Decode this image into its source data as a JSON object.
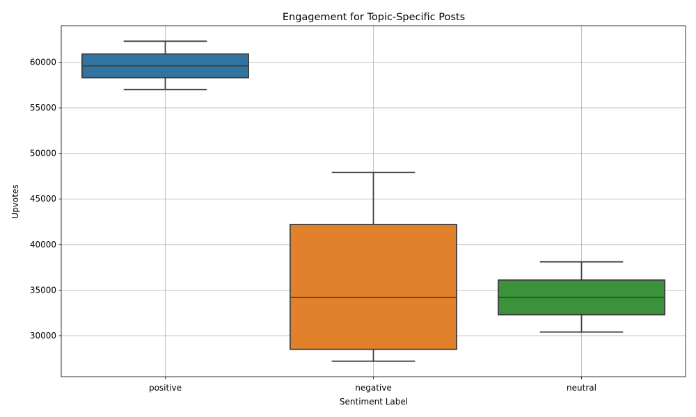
{
  "chart_data": {
    "type": "box",
    "title": "Engagement for Topic-Specific Posts",
    "xlabel": "Sentiment Label",
    "ylabel": "Upvotes",
    "ylim": [
      25500,
      64000
    ],
    "yticks": [
      30000,
      35000,
      40000,
      45000,
      50000,
      55000,
      60000
    ],
    "grid": true,
    "categories": [
      "positive",
      "negative",
      "neutral"
    ],
    "boxes": [
      {
        "category": "positive",
        "color": "#3274a1",
        "whisker_low": 57000,
        "q1": 58300,
        "median": 59600,
        "q3": 60900,
        "whisker_high": 62300
      },
      {
        "category": "negative",
        "color": "#e1812c",
        "whisker_low": 27200,
        "q1": 28500,
        "median": 34200,
        "q3": 42200,
        "whisker_high": 47900
      },
      {
        "category": "neutral",
        "color": "#3a923a",
        "whisker_low": 30400,
        "q1": 32300,
        "median": 34200,
        "q3": 36100,
        "whisker_high": 38100
      }
    ]
  }
}
